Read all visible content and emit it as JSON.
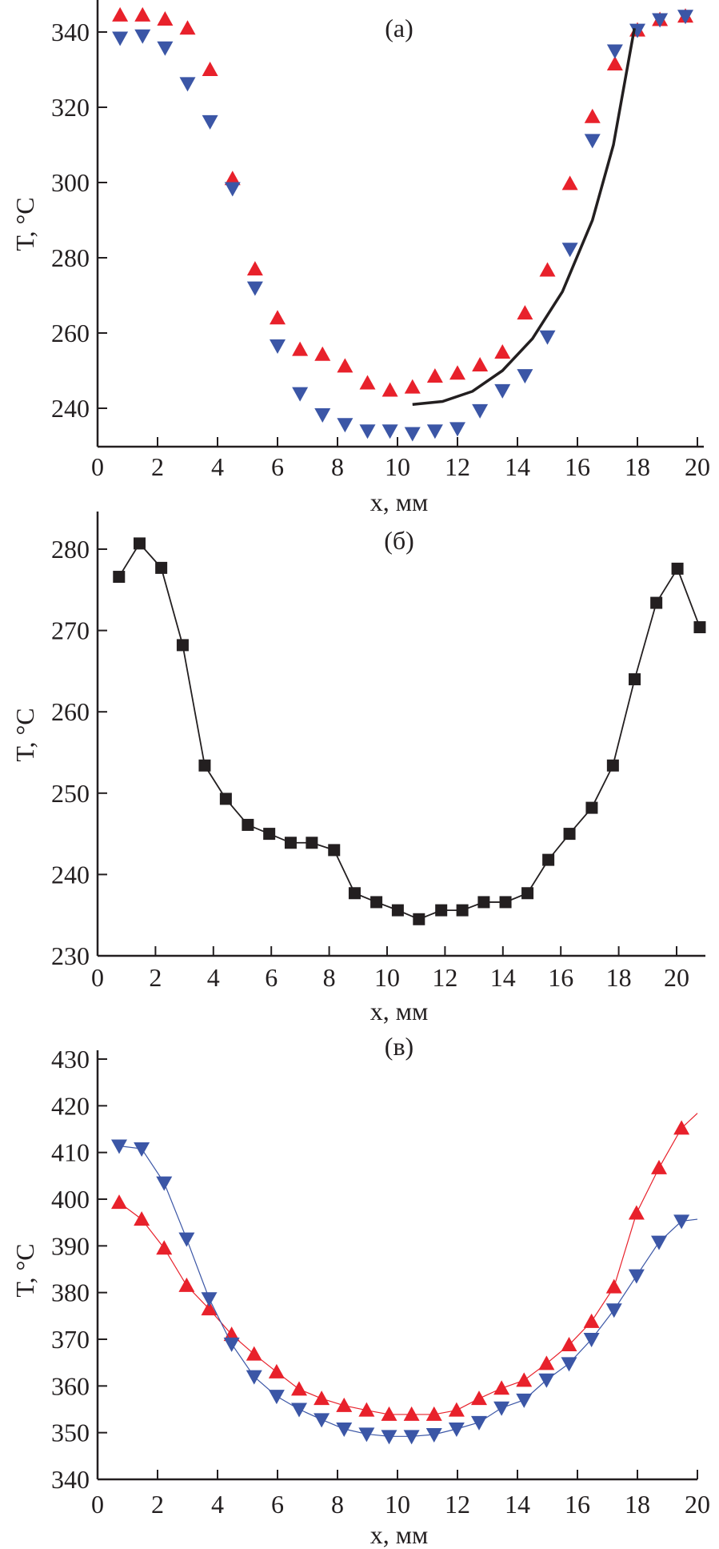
{
  "colors": {
    "red": "#e8212b",
    "blue": "#3b56a6",
    "black": "#231f20"
  },
  "chart_data": [
    {
      "panel_label": "(а)",
      "type": "scatter",
      "xlabel": "x, мм",
      "ylabel": "T, °C",
      "xlim": [
        0,
        20.2
      ],
      "ylim": [
        230,
        348.5
      ],
      "xticks": [
        "0",
        "2",
        "4",
        "6",
        "8",
        "10",
        "12",
        "14",
        "16",
        "18",
        "20"
      ],
      "yticks": [
        "240",
        "260",
        "280",
        "300",
        "320",
        "340"
      ],
      "grid": false,
      "series": [
        {
          "marker": "triangle-up",
          "color": "red",
          "x": [
            0.75,
            1.5,
            2.25,
            3.0,
            3.75,
            4.5,
            5.25,
            6.0,
            6.75,
            7.5,
            8.25,
            9.0,
            9.75,
            10.5,
            11.25,
            12.0,
            12.75,
            13.5,
            14.25,
            15.0,
            15.75,
            16.5,
            17.25,
            18.0,
            18.75,
            19.6
          ],
          "y": [
            344.5,
            344.5,
            343.4,
            341,
            330,
            301,
            277,
            264,
            255.6,
            254.3,
            251.2,
            246.7,
            244.8,
            245.6,
            248.5,
            249.3,
            251.5,
            254.9,
            265.3,
            276.7,
            299.7,
            317.5,
            331.5,
            340.5,
            343.3,
            344.2
          ]
        },
        {
          "marker": "triangle-down",
          "color": "blue",
          "x": [
            0.75,
            1.5,
            2.25,
            3.0,
            3.75,
            4.5,
            5.25,
            6.0,
            6.75,
            7.5,
            8.25,
            9.0,
            9.75,
            10.5,
            11.25,
            12.0,
            12.75,
            13.5,
            14.25,
            15.0,
            15.75,
            16.5,
            17.25,
            18.0,
            18.75,
            19.6
          ],
          "y": [
            338.4,
            339,
            335.8,
            326.3,
            316.2,
            298.4,
            272,
            256.6,
            243.9,
            238.3,
            235.7,
            234,
            234,
            233.3,
            234,
            234.6,
            239.4,
            244.7,
            248.7,
            259,
            282.3,
            311.2,
            335,
            340.5,
            343.3,
            344.2
          ]
        },
        {
          "marker": "none",
          "line": true,
          "color": "black",
          "x": [
            10.5,
            11.5,
            12.5,
            13.5,
            14.5,
            15.5,
            16.5,
            17.2,
            17.9
          ],
          "y": [
            241,
            241.8,
            244.5,
            250,
            258.5,
            271,
            290,
            310,
            341
          ]
        }
      ]
    },
    {
      "panel_label": "(б)",
      "type": "line",
      "xlabel": "x, мм",
      "ylabel": "T, °C",
      "xlim": [
        0,
        21
      ],
      "ylim": [
        230,
        284.6
      ],
      "xticks": [
        "0",
        "2",
        "4",
        "6",
        "8",
        "10",
        "12",
        "14",
        "16",
        "18",
        "20"
      ],
      "yticks": [
        "230",
        "240",
        "250",
        "260",
        "270",
        "280"
      ],
      "grid": false,
      "series": [
        {
          "marker": "square",
          "color": "black",
          "line": true,
          "x": [
            0.74,
            1.45,
            2.2,
            2.94,
            3.7,
            4.43,
            5.19,
            5.93,
            6.67,
            7.4,
            8.17,
            8.88,
            9.63,
            10.37,
            11.1,
            11.87,
            12.6,
            13.34,
            14.09,
            14.85,
            15.57,
            16.3,
            17.07,
            17.8,
            18.55,
            19.3,
            20.03,
            20.8
          ],
          "y": [
            276.6,
            280.7,
            277.7,
            268.2,
            253.4,
            249.3,
            246.1,
            245,
            243.9,
            243.9,
            243,
            237.7,
            236.6,
            235.6,
            234.5,
            235.6,
            235.6,
            236.6,
            236.6,
            237.7,
            241.8,
            245,
            248.2,
            253.4,
            264,
            273.4,
            277.6,
            270.4
          ]
        }
      ]
    },
    {
      "panel_label": "(в)",
      "type": "line",
      "xlabel": "x, мм",
      "ylabel": "T, °C",
      "xlim": [
        0,
        20
      ],
      "ylim": [
        340,
        430
      ],
      "xticks": [
        "0",
        "2",
        "4",
        "6",
        "8",
        "10",
        "12",
        "14",
        "16",
        "18",
        "20"
      ],
      "yticks": [
        "340",
        "350",
        "360",
        "370",
        "380",
        "390",
        "400",
        "410",
        "420",
        "430"
      ],
      "grid": false,
      "series": [
        {
          "marker": "triangle-up",
          "color": "red",
          "line": true,
          "x": [
            0.72,
            1.47,
            2.22,
            2.97,
            3.72,
            4.47,
            5.22,
            5.97,
            6.72,
            7.47,
            8.22,
            8.97,
            9.72,
            10.47,
            11.22,
            11.97,
            12.72,
            13.47,
            14.22,
            14.97,
            15.72,
            16.47,
            17.22,
            17.97,
            18.72,
            19.47,
            20
          ],
          "y": [
            399.3,
            395.7,
            389.5,
            381.5,
            376.5,
            371,
            366.8,
            363,
            359.3,
            357.3,
            355.8,
            354.8,
            353.9,
            353.9,
            353.9,
            354.8,
            357.3,
            359.5,
            361.2,
            364.8,
            368.8,
            373.8,
            381.2,
            397,
            406.7,
            415.2,
            418.4
          ],
          "marker_count": 26
        },
        {
          "marker": "triangle-down",
          "color": "blue",
          "line": true,
          "x": [
            0.72,
            1.47,
            2.22,
            2.97,
            3.72,
            4.47,
            5.22,
            5.97,
            6.72,
            7.47,
            8.22,
            8.97,
            9.72,
            10.47,
            11.22,
            11.97,
            12.72,
            13.47,
            14.22,
            14.97,
            15.72,
            16.47,
            17.22,
            17.97,
            18.72,
            19.47,
            20
          ],
          "y": [
            411.4,
            410.8,
            403.5,
            391.5,
            378.7,
            369,
            362,
            357.8,
            355,
            352.8,
            350.8,
            349.7,
            349.2,
            349.2,
            349.6,
            350.8,
            352.2,
            355.3,
            357,
            361.3,
            364.8,
            370,
            376.3,
            383.6,
            390.8,
            395.3,
            395.7
          ],
          "marker_count": 26
        }
      ]
    }
  ]
}
